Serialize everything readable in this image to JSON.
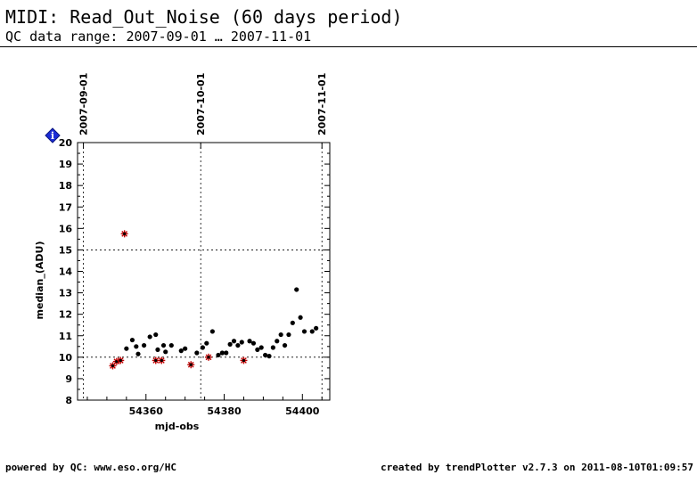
{
  "header": {
    "title": "MIDI: Read_Out_Noise (60 days period)",
    "subtitle": "QC data range: 2007-09-01 … 2007-11-01"
  },
  "footer": {
    "left": "powered by QC: www.eso.org/HC",
    "right": "created by trendPlotter v2.7.3 on 2011-08-10T01:09:57"
  },
  "colors": {
    "normal_point": "#000000",
    "flagged_point": "#c00000",
    "info_marker": "#1a2bd6"
  },
  "info_marker": {
    "icon": "info-diamond-icon",
    "label": "i"
  },
  "chart_data": {
    "type": "scatter",
    "xlabel": "mjd-obs",
    "ylabel": "median_(ADU)",
    "xlim": [
      54342.5,
      54407
    ],
    "ylim": [
      8,
      20
    ],
    "x_ticks": [
      54360,
      54380,
      54400
    ],
    "y_ticks": [
      8,
      9,
      10,
      11,
      12,
      13,
      14,
      15,
      16,
      17,
      18,
      19,
      20
    ],
    "top_date_ticks": [
      {
        "x": 54344,
        "label": "2007-09-01"
      },
      {
        "x": 54374,
        "label": "2007-10-01"
      },
      {
        "x": 54405,
        "label": "2007-11-01"
      }
    ],
    "reference_lines": {
      "horizontal": [
        10,
        15
      ],
      "vertical": [
        54344,
        54374,
        54405
      ]
    },
    "series": [
      {
        "marker": "dot",
        "points": [
          [
            54355,
            10.4
          ],
          [
            54356.5,
            10.8
          ],
          [
            54357.5,
            10.5
          ],
          [
            54358,
            10.15
          ],
          [
            54359.5,
            10.55
          ],
          [
            54361,
            10.95
          ],
          [
            54362.5,
            11.05
          ],
          [
            54363,
            10.35
          ],
          [
            54364.5,
            10.55
          ],
          [
            54365,
            10.25
          ],
          [
            54366.5,
            10.55
          ],
          [
            54369,
            10.3
          ],
          [
            54370,
            10.4
          ],
          [
            54373,
            10.2
          ],
          [
            54374.5,
            10.45
          ],
          [
            54375.5,
            10.65
          ],
          [
            54377,
            11.2
          ],
          [
            54378.5,
            10.1
          ],
          [
            54379.5,
            10.2
          ],
          [
            54380.5,
            10.2
          ],
          [
            54381.5,
            10.6
          ],
          [
            54382.5,
            10.75
          ],
          [
            54383.5,
            10.55
          ],
          [
            54384.5,
            10.7
          ],
          [
            54386.5,
            10.75
          ],
          [
            54387.5,
            10.65
          ],
          [
            54388.5,
            10.35
          ],
          [
            54389.5,
            10.45
          ],
          [
            54390.5,
            10.1
          ],
          [
            54391.5,
            10.05
          ],
          [
            54392.5,
            10.45
          ],
          [
            54393.5,
            10.75
          ],
          [
            54394.5,
            11.05
          ],
          [
            54395.5,
            10.55
          ],
          [
            54396.5,
            11.05
          ],
          [
            54397.5,
            11.6
          ],
          [
            54398.5,
            13.15
          ],
          [
            54399.5,
            11.85
          ],
          [
            54400.5,
            11.2
          ],
          [
            54402.5,
            11.2
          ],
          [
            54403.5,
            11.35
          ]
        ]
      },
      {
        "marker": "star",
        "points": [
          [
            54351.5,
            9.6
          ],
          [
            54352.5,
            9.8
          ],
          [
            54353.5,
            9.85
          ],
          [
            54354.5,
            15.75
          ],
          [
            54362.5,
            9.85
          ],
          [
            54364,
            9.85
          ],
          [
            54371.5,
            9.65
          ],
          [
            54376,
            10.0
          ],
          [
            54385,
            9.85
          ]
        ]
      }
    ]
  }
}
